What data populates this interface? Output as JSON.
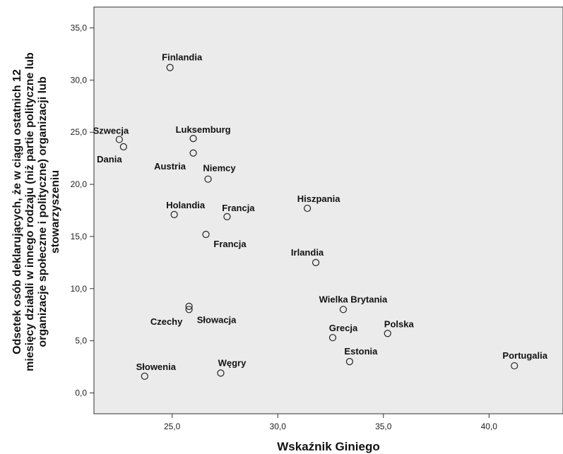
{
  "chart_data": {
    "type": "scatter",
    "title": "",
    "xlabel": "Wskaźnik Giniego",
    "ylabel_lines": [
      "Odsetek osób deklarujących, że w ciągu ostatnich 12",
      "miesięcy działali w innego rodzaju (niż partie polityczne lub",
      "organizacje społeczne i polityczne) organizacji lub",
      "stowarzyszeniu"
    ],
    "xlim": [
      21.3,
      43.5
    ],
    "ylim": [
      -2.0,
      37.0
    ],
    "xticks": [
      25.0,
      30.0,
      35.0,
      40.0
    ],
    "yticks": [
      0.0,
      5.0,
      10.0,
      15.0,
      20.0,
      25.0,
      30.0,
      35.0
    ],
    "xtick_labels": [
      "25,0",
      "30,0",
      "35,0",
      "40,0"
    ],
    "ytick_labels": [
      "0,0",
      "5,0",
      "10,0",
      "15,0",
      "20,0",
      "25,0",
      "30,0",
      "35,0"
    ],
    "grid": false,
    "plot_background": "#ebebeb",
    "marker_color": "#222222",
    "points": [
      {
        "label": "Finlandia",
        "x": 24.9,
        "y": 31.2
      },
      {
        "label": "Szwecja",
        "x": 22.5,
        "y": 24.3
      },
      {
        "label": "Dania",
        "x": 22.7,
        "y": 23.6
      },
      {
        "label": "Luksemburg",
        "x": 26.0,
        "y": 24.4
      },
      {
        "label": "Austria",
        "x": 26.0,
        "y": 23.0
      },
      {
        "label": "Niemcy",
        "x": 26.7,
        "y": 20.5
      },
      {
        "label": "Hiszpania",
        "x": 31.4,
        "y": 17.7
      },
      {
        "label": "Holandia",
        "x": 25.1,
        "y": 17.1
      },
      {
        "label": "Francja",
        "x": 27.6,
        "y": 16.9
      },
      {
        "label": "Francja",
        "x": 26.6,
        "y": 15.2
      },
      {
        "label": "Irlandia",
        "x": 31.8,
        "y": 12.5
      },
      {
        "label": "Czechy",
        "x": 25.8,
        "y": 8.3
      },
      {
        "label": "Słowacja",
        "x": 25.8,
        "y": 8.0
      },
      {
        "label": "Wielka Brytania",
        "x": 33.1,
        "y": 8.0
      },
      {
        "label": "Polska",
        "x": 35.2,
        "y": 5.7
      },
      {
        "label": "Grecja",
        "x": 32.6,
        "y": 5.3
      },
      {
        "label": "Estonia",
        "x": 33.4,
        "y": 3.0
      },
      {
        "label": "Portugalia",
        "x": 41.2,
        "y": 2.6
      },
      {
        "label": "Słowenia",
        "x": 23.7,
        "y": 1.6
      },
      {
        "label": "Węgry",
        "x": 27.3,
        "y": 1.9
      }
    ]
  }
}
